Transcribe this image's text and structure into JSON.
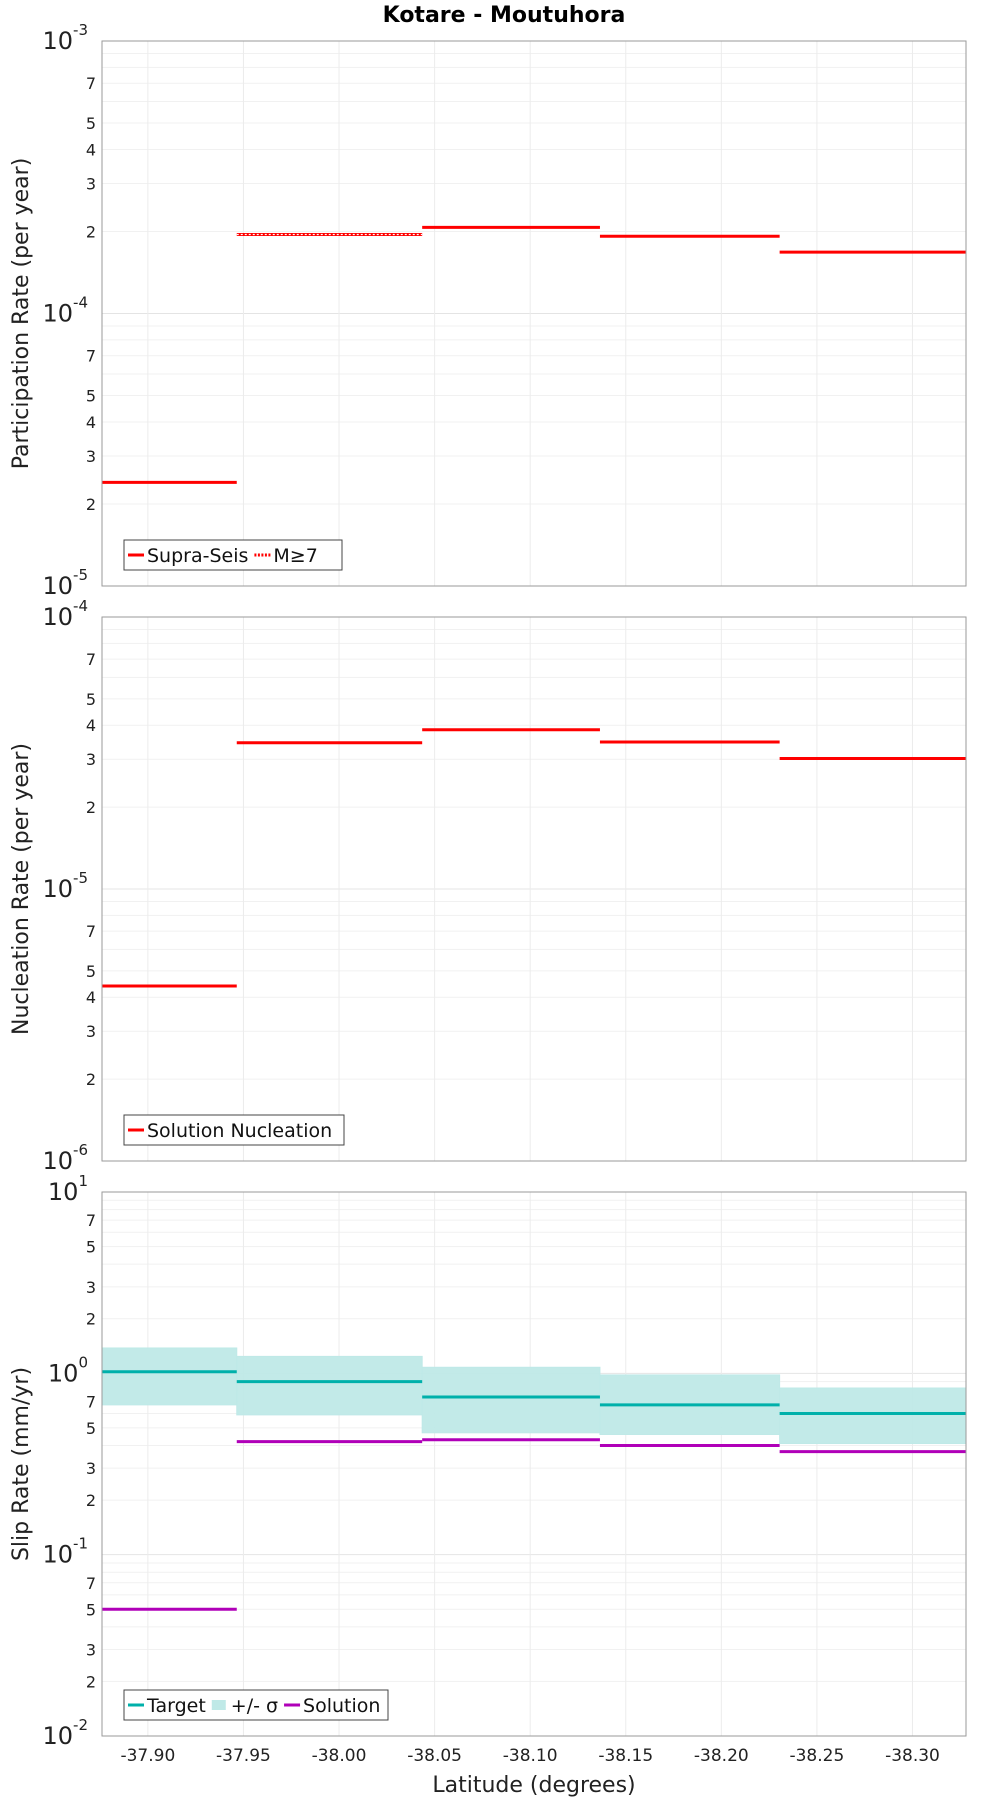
{
  "title": "Kotare - Moutuhora",
  "xlabel": "Latitude (degrees)",
  "x_ticks": [
    -37.9,
    -37.95,
    -38.0,
    -38.05,
    -38.1,
    -38.15,
    -38.2,
    -38.25,
    -38.3
  ],
  "x_tick_labels": [
    "-37.90",
    "-37.95",
    "-38.00",
    "-38.05",
    "-38.10",
    "-38.15",
    "-38.20",
    "-38.25",
    "-38.30"
  ],
  "chart_data": [
    {
      "type": "line",
      "name": "participation",
      "ylabel": "Participation Rate (per year)",
      "yscale": "log",
      "ylim": [
        1e-05,
        0.001
      ],
      "xlim": [
        -37.876,
        -38.328
      ],
      "major_ticks": [
        {
          "base": "10",
          "exp": "-5"
        },
        {
          "base": "10",
          "exp": "-4"
        },
        {
          "base": "10",
          "exp": "-3"
        }
      ],
      "minor_tick_labels": [
        "2",
        "3",
        "4",
        "5",
        "7"
      ],
      "legend": [
        "Supra-Seis",
        "M≥7"
      ],
      "series": [
        {
          "name": "Supra-Seis",
          "color": "#ff0000",
          "style": "solid",
          "segments": [
            [
              -37.876,
              -37.9465,
              2.4e-05
            ],
            [
              -37.9465,
              -38.0435,
              0.000195
            ],
            [
              -38.0435,
              -38.1365,
              0.000207
            ],
            [
              -38.1365,
              -38.2305,
              0.000192
            ],
            [
              -38.2305,
              -38.328,
              0.000168
            ]
          ]
        },
        {
          "name": "M≥7",
          "color": "#ff0000",
          "style": "dotted",
          "segments": [
            [
              -37.9465,
              -38.0435,
              0.000195
            ]
          ]
        }
      ]
    },
    {
      "type": "line",
      "name": "nucleation",
      "ylabel": "Nucleation Rate (per year)",
      "yscale": "log",
      "ylim": [
        1e-06,
        0.0001
      ],
      "xlim": [
        -37.876,
        -38.328
      ],
      "major_ticks": [
        {
          "base": "10",
          "exp": "-6"
        },
        {
          "base": "10",
          "exp": "-5"
        },
        {
          "base": "10",
          "exp": "-4"
        }
      ],
      "minor_tick_labels": [
        "2",
        "3",
        "4",
        "5",
        "7"
      ],
      "legend": [
        "Solution Nucleation"
      ],
      "series": [
        {
          "name": "Solution Nucleation",
          "color": "#ff0000",
          "style": "solid",
          "segments": [
            [
              -37.876,
              -37.9465,
              4.4e-06
            ],
            [
              -37.9465,
              -38.0435,
              3.45e-05
            ],
            [
              -38.0435,
              -38.1365,
              3.85e-05
            ],
            [
              -38.1365,
              -38.2305,
              3.47e-05
            ],
            [
              -38.2305,
              -38.328,
              3.02e-05
            ]
          ]
        }
      ]
    },
    {
      "type": "line",
      "name": "slip-rate",
      "ylabel": "Slip Rate (mm/yr)",
      "yscale": "log",
      "ylim": [
        0.01,
        10
      ],
      "xlim": [
        -37.876,
        -38.328
      ],
      "major_ticks": [
        {
          "base": "10",
          "exp": "-2"
        },
        {
          "base": "10",
          "exp": "-1"
        },
        {
          "base": "10",
          "exp": "0"
        },
        {
          "base": "10",
          "exp": "1"
        }
      ],
      "minor_tick_labels": [
        "2",
        "3",
        "5",
        "7"
      ],
      "legend": [
        "Target",
        "+/- σ",
        "Solution"
      ],
      "band": {
        "name": "+/- σ",
        "color": "#bfe9e7",
        "segments": [
          [
            -37.876,
            -37.9465,
            0.67,
            1.38
          ],
          [
            -37.9465,
            -38.0435,
            0.59,
            1.24
          ],
          [
            -38.0435,
            -38.1365,
            0.47,
            1.08
          ],
          [
            -38.1365,
            -38.2305,
            0.46,
            0.98
          ],
          [
            -38.2305,
            -38.328,
            0.41,
            0.83
          ]
        ]
      },
      "series": [
        {
          "name": "Target",
          "color": "#00b0aa",
          "style": "solid",
          "segments": [
            [
              -37.876,
              -37.9465,
              1.02
            ],
            [
              -37.9465,
              -38.0435,
              0.9
            ],
            [
              -38.0435,
              -38.1365,
              0.74
            ],
            [
              -38.1365,
              -38.2305,
              0.67
            ],
            [
              -38.2305,
              -38.328,
              0.6
            ]
          ]
        },
        {
          "name": "Solution",
          "color": "#b000b8",
          "style": "solid",
          "segments": [
            [
              -37.876,
              -37.9465,
              0.05
            ],
            [
              -37.9465,
              -38.0435,
              0.42
            ],
            [
              -38.0435,
              -38.1365,
              0.43
            ],
            [
              -38.1365,
              -38.2305,
              0.4
            ],
            [
              -38.2305,
              -38.328,
              0.37
            ]
          ]
        }
      ]
    }
  ]
}
